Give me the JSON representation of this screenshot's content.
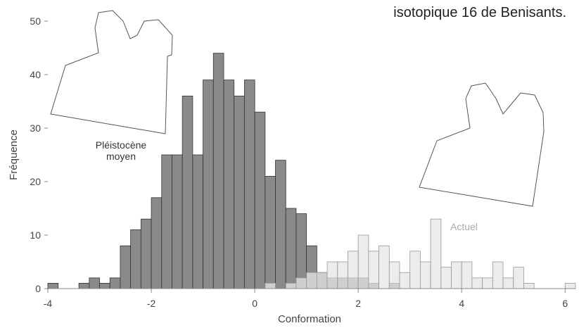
{
  "chart_data": {
    "type": "histogram",
    "caption": "isotopique 16 de Benisants.",
    "xlabel": "Conformation",
    "ylabel": "Fréquence",
    "bins": [
      -4.0,
      -3.8,
      -3.6,
      -3.4,
      -3.2,
      -3.0,
      -2.8,
      -2.6,
      -2.4,
      -2.2,
      -2.0,
      -1.8,
      -1.6,
      -1.4,
      -1.2,
      -1.0,
      -0.8,
      -0.6,
      -0.4,
      -0.2,
      0.0,
      0.2,
      0.4,
      0.6,
      0.8,
      1.0,
      1.2,
      1.4,
      1.6,
      1.8,
      2.0,
      2.2,
      2.4,
      2.6,
      2.8,
      3.0,
      3.2,
      3.4,
      3.6,
      3.8,
      4.0,
      4.2,
      4.4,
      4.6,
      4.8,
      5.0,
      5.2,
      5.4,
      5.6,
      5.8,
      6.0,
      6.2
    ],
    "series": [
      {
        "name": "Pléistocène moyen",
        "color": "#8a8a8a",
        "values": [
          1,
          0,
          0,
          1,
          2,
          1,
          2,
          8,
          11,
          13,
          17,
          25,
          25,
          36,
          25,
          39,
          44,
          39,
          36,
          39,
          33,
          21,
          24,
          15,
          14,
          8,
          3,
          2,
          2,
          2,
          2,
          1,
          0,
          1,
          0,
          0,
          0,
          0,
          0,
          0,
          0,
          0,
          0,
          0,
          0,
          0,
          0,
          0,
          0,
          0,
          0
        ]
      },
      {
        "name": "Actuel",
        "color": "#e6e6e6",
        "values": [
          0,
          0,
          0,
          0,
          0,
          0,
          0,
          0,
          0,
          0,
          0,
          0,
          0,
          0,
          0,
          0,
          0,
          0,
          0,
          0,
          0,
          1,
          0,
          1,
          2,
          3,
          3,
          5,
          5,
          7,
          10,
          7,
          8,
          5,
          3,
          7,
          5,
          13,
          4,
          5,
          5,
          2,
          2,
          5,
          2,
          4,
          1,
          0,
          0,
          0,
          1
        ]
      }
    ],
    "xlim": [
      -4,
      6.2
    ],
    "ylim": [
      0,
      50
    ],
    "xticks": [
      -4,
      -2,
      0,
      2,
      4,
      6
    ],
    "yticks": [
      0,
      10,
      20,
      30,
      40,
      50
    ]
  }
}
